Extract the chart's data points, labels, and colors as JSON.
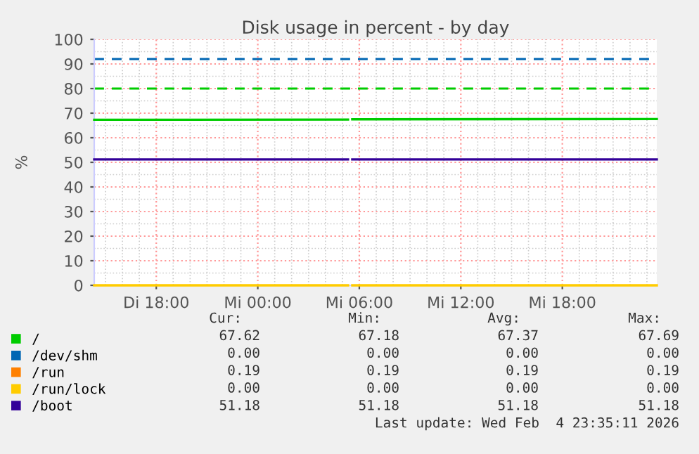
{
  "chart_data": {
    "type": "line",
    "title": "Disk usage in percent - by day",
    "ylabel": "%",
    "xlim": [
      "2026-02-03T14:20",
      "2026-02-04T23:35"
    ],
    "xticks": [
      {
        "value": "2026-02-03T18:00",
        "label": "Di 18:00"
      },
      {
        "value": "2026-02-04T00:00",
        "label": "Mi 00:00"
      },
      {
        "value": "2026-02-04T06:00",
        "label": "Mi 06:00"
      },
      {
        "value": "2026-02-04T12:00",
        "label": "Mi 12:00"
      },
      {
        "value": "2026-02-04T18:00",
        "label": "Mi 18:00"
      }
    ],
    "ylim": [
      0,
      100
    ],
    "yticks": [
      0,
      10,
      20,
      30,
      40,
      50,
      60,
      70,
      80,
      90,
      100
    ],
    "grid": true,
    "legend": "bottom left",
    "marker": "none",
    "line_style": "solid",
    "x": [
      "2026-02-03T14:20",
      "2026-02-04T05:20",
      "2026-02-04T05:25",
      "2026-02-04T05:35",
      "2026-02-04T23:35"
    ],
    "series": [
      {
        "name": "/",
        "color": "#00cc00",
        "values": [
          67.3,
          67.4,
          null,
          67.5,
          67.6
        ]
      },
      {
        "name": "/dev/shm",
        "color": "#0066b3",
        "values": [
          null,
          null,
          null,
          null,
          null
        ]
      },
      {
        "name": "/run",
        "color": "#ff8000",
        "values": [
          null,
          null,
          null,
          null,
          null
        ]
      },
      {
        "name": "/run/lock",
        "color": "#ffcc00",
        "values": [
          0,
          0,
          null,
          0,
          0
        ]
      },
      {
        "name": "/boot",
        "color": "#330099",
        "values": [
          51.2,
          51.2,
          null,
          51.2,
          51.2
        ]
      }
    ],
    "ref_lines": [
      {
        "axis": "y",
        "value": 92,
        "color": "#0066b3",
        "line_style": "dashed"
      },
      {
        "axis": "y",
        "value": 80,
        "color": "#00cc00",
        "line_style": "dashed"
      }
    ],
    "annotations": [
      "Cur:",
      "Min:",
      "Avg:",
      "Max:",
      "67.62",
      "67.18",
      "67.37",
      "67.69",
      "0.00",
      "0.00",
      "0.00",
      "0.00",
      "0.19",
      "0.19",
      "0.19",
      "0.19",
      "0.00",
      "0.00",
      "0.00",
      "0.00",
      "51.18",
      "51.18",
      "51.18",
      "51.18",
      "Last update: Wed Feb  4 23:35:11 2026"
    ]
  }
}
